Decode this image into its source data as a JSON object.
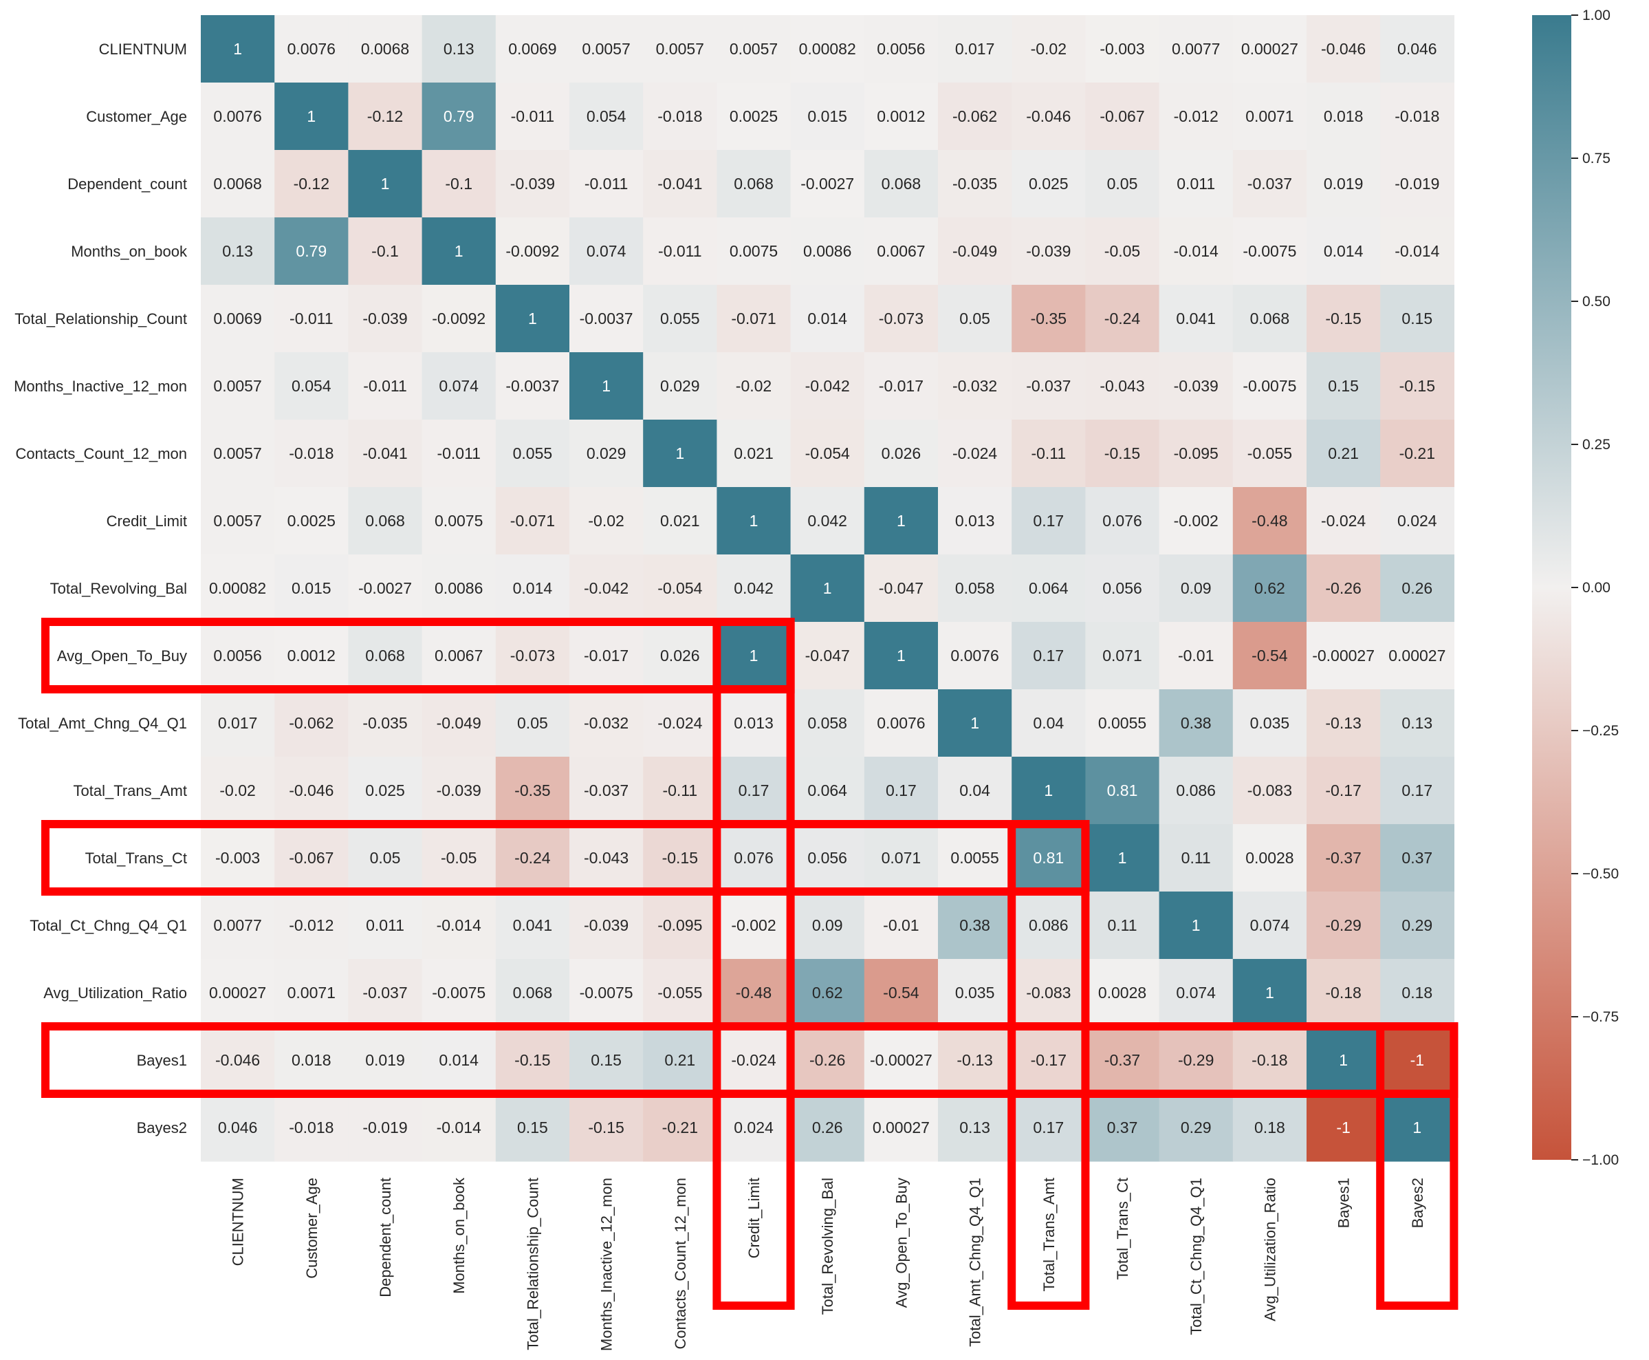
{
  "chart_data": {
    "type": "heatmap",
    "title": "",
    "xlabel": "",
    "ylabel": "",
    "labels": [
      "CLIENTNUM",
      "Customer_Age",
      "Dependent_count",
      "Months_on_book",
      "Total_Relationship_Count",
      "Months_Inactive_12_mon",
      "Contacts_Count_12_mon",
      "Credit_Limit",
      "Total_Revolving_Bal",
      "Avg_Open_To_Buy",
      "Total_Amt_Chng_Q4_Q1",
      "Total_Trans_Amt",
      "Total_Trans_Ct",
      "Total_Ct_Chng_Q4_Q1",
      "Avg_Utilization_Ratio",
      "Bayes1",
      "Bayes2"
    ],
    "matrix": [
      [
        "1",
        "0.0076",
        "0.0068",
        "0.13",
        "0.0069",
        "0.0057",
        "0.0057",
        "0.0057",
        "0.00082",
        "0.0056",
        "0.017",
        "-0.02",
        "-0.003",
        "0.0077",
        "0.00027",
        "-0.046",
        "0.046"
      ],
      [
        "0.0076",
        "1",
        "-0.12",
        "0.79",
        "-0.011",
        "0.054",
        "-0.018",
        "0.0025",
        "0.015",
        "0.0012",
        "-0.062",
        "-0.046",
        "-0.067",
        "-0.012",
        "0.0071",
        "0.018",
        "-0.018"
      ],
      [
        "0.0068",
        "-0.12",
        "1",
        "-0.1",
        "-0.039",
        "-0.011",
        "-0.041",
        "0.068",
        "-0.0027",
        "0.068",
        "-0.035",
        "0.025",
        "0.05",
        "0.011",
        "-0.037",
        "0.019",
        "-0.019"
      ],
      [
        "0.13",
        "0.79",
        "-0.1",
        "1",
        "-0.0092",
        "0.074",
        "-0.011",
        "0.0075",
        "0.0086",
        "0.0067",
        "-0.049",
        "-0.039",
        "-0.05",
        "-0.014",
        "-0.0075",
        "0.014",
        "-0.014"
      ],
      [
        "0.0069",
        "-0.011",
        "-0.039",
        "-0.0092",
        "1",
        "-0.0037",
        "0.055",
        "-0.071",
        "0.014",
        "-0.073",
        "0.05",
        "-0.35",
        "-0.24",
        "0.041",
        "0.068",
        "-0.15",
        "0.15"
      ],
      [
        "0.0057",
        "0.054",
        "-0.011",
        "0.074",
        "-0.0037",
        "1",
        "0.029",
        "-0.02",
        "-0.042",
        "-0.017",
        "-0.032",
        "-0.037",
        "-0.043",
        "-0.039",
        "-0.0075",
        "0.15",
        "-0.15"
      ],
      [
        "0.0057",
        "-0.018",
        "-0.041",
        "-0.011",
        "0.055",
        "0.029",
        "1",
        "0.021",
        "-0.054",
        "0.026",
        "-0.024",
        "-0.11",
        "-0.15",
        "-0.095",
        "-0.055",
        "0.21",
        "-0.21"
      ],
      [
        "0.0057",
        "0.0025",
        "0.068",
        "0.0075",
        "-0.071",
        "-0.02",
        "0.021",
        "1",
        "0.042",
        "1",
        "0.013",
        "0.17",
        "0.076",
        "-0.002",
        "-0.48",
        "-0.024",
        "0.024"
      ],
      [
        "0.00082",
        "0.015",
        "-0.0027",
        "0.0086",
        "0.014",
        "-0.042",
        "-0.054",
        "0.042",
        "1",
        "-0.047",
        "0.058",
        "0.064",
        "0.056",
        "0.09",
        "0.62",
        "-0.26",
        "0.26"
      ],
      [
        "0.0056",
        "0.0012",
        "0.068",
        "0.0067",
        "-0.073",
        "-0.017",
        "0.026",
        "1",
        "-0.047",
        "1",
        "0.0076",
        "0.17",
        "0.071",
        "-0.01",
        "-0.54",
        "-0.00027",
        "0.00027"
      ],
      [
        "0.017",
        "-0.062",
        "-0.035",
        "-0.049",
        "0.05",
        "-0.032",
        "-0.024",
        "0.013",
        "0.058",
        "0.0076",
        "1",
        "0.04",
        "0.0055",
        "0.38",
        "0.035",
        "-0.13",
        "0.13"
      ],
      [
        "-0.02",
        "-0.046",
        "0.025",
        "-0.039",
        "-0.35",
        "-0.037",
        "-0.11",
        "0.17",
        "0.064",
        "0.17",
        "0.04",
        "1",
        "0.81",
        "0.086",
        "-0.083",
        "-0.17",
        "0.17"
      ],
      [
        "-0.003",
        "-0.067",
        "0.05",
        "-0.05",
        "-0.24",
        "-0.043",
        "-0.15",
        "0.076",
        "0.056",
        "0.071",
        "0.0055",
        "0.81",
        "1",
        "0.11",
        "0.0028",
        "-0.37",
        "0.37"
      ],
      [
        "0.0077",
        "-0.012",
        "0.011",
        "-0.014",
        "0.041",
        "-0.039",
        "-0.095",
        "-0.002",
        "0.09",
        "-0.01",
        "0.38",
        "0.086",
        "0.11",
        "1",
        "0.074",
        "-0.29",
        "0.29"
      ],
      [
        "0.00027",
        "0.0071",
        "-0.037",
        "-0.0075",
        "0.068",
        "-0.0075",
        "-0.055",
        "-0.48",
        "0.62",
        "-0.54",
        "0.035",
        "-0.083",
        "0.0028",
        "0.074",
        "1",
        "-0.18",
        "0.18"
      ],
      [
        "-0.046",
        "0.018",
        "0.019",
        "0.014",
        "-0.15",
        "0.15",
        "0.21",
        "-0.024",
        "-0.26",
        "-0.00027",
        "-0.13",
        "-0.17",
        "-0.37",
        "-0.29",
        "-0.18",
        "1",
        "-1"
      ],
      [
        "0.046",
        "-0.018",
        "-0.019",
        "-0.014",
        "0.15",
        "-0.15",
        "-0.21",
        "0.024",
        "0.26",
        "0.00027",
        "0.13",
        "0.17",
        "0.37",
        "0.29",
        "0.18",
        "-1",
        "1"
      ]
    ],
    "vmin": -1,
    "vmax": 1,
    "colorbar": {
      "ticks": [
        "1.00",
        "0.75",
        "0.50",
        "0.25",
        "0.00",
        "−0.25",
        "−0.50",
        "−0.75",
        "−1.00"
      ]
    },
    "colors": {
      "positive": "#3a7b8e",
      "neutral": "#f2f0ef",
      "negative": "#c6533a",
      "highlight": "#ff0000"
    },
    "highlights": [
      {
        "kind": "row",
        "label": "Avg_Open_To_Buy",
        "through": "Credit_Limit"
      },
      {
        "kind": "row",
        "label": "Total_Trans_Ct",
        "through": "Total_Trans_Amt"
      },
      {
        "kind": "row",
        "label": "Bayes1",
        "through": "Bayes2"
      },
      {
        "kind": "column",
        "label": "Credit_Limit",
        "from": "Avg_Open_To_Buy"
      },
      {
        "kind": "column",
        "label": "Total_Trans_Amt",
        "from": "Total_Trans_Ct"
      },
      {
        "kind": "column",
        "label": "Bayes2",
        "from": "Bayes1"
      }
    ]
  }
}
